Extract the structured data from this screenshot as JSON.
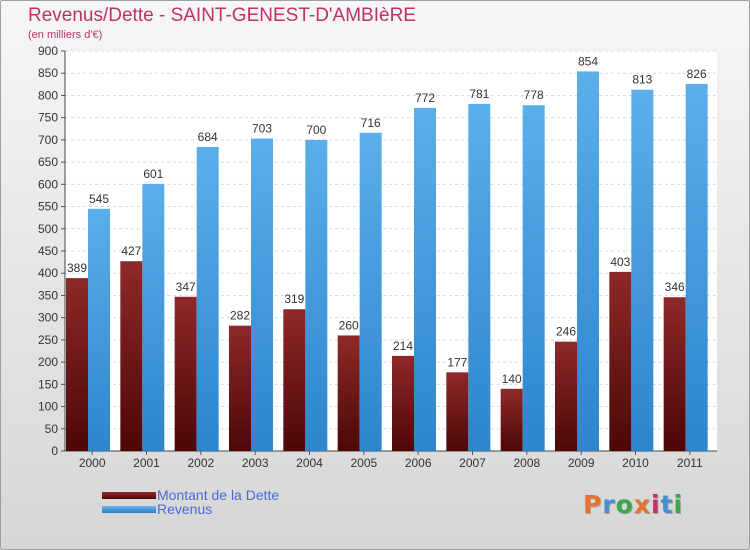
{
  "title": "Revenus/Dette - SAINT-GENEST-D'AMBIèRE",
  "subtitle": "(en milliers d'€)",
  "legend": [
    {
      "label": "Montant de la Dette",
      "color": "#7b1c1c"
    },
    {
      "label": "Revenus",
      "color": "#3f93db"
    }
  ],
  "logo": {
    "text": "Proxiti",
    "colors": [
      "#e8722c",
      "#4a8ed0",
      "#3aa849",
      "#e8722c",
      "#c0316a",
      "#4a8ed0",
      "#3aa849"
    ]
  },
  "colors": {
    "title": "#c0316a",
    "legend_text": "#4a6ad6",
    "dette": "#7b1c1c",
    "revenus": "#3f93db"
  },
  "chart_data": {
    "type": "bar",
    "categories": [
      "2000",
      "2001",
      "2002",
      "2003",
      "2004",
      "2005",
      "2006",
      "2007",
      "2008",
      "2009",
      "2010",
      "2011"
    ],
    "series": [
      {
        "name": "Montant de la Dette",
        "values": [
          389,
          427,
          347,
          282,
          319,
          260,
          214,
          177,
          140,
          246,
          403,
          346
        ]
      },
      {
        "name": "Revenus",
        "values": [
          545,
          601,
          684,
          703,
          700,
          716,
          772,
          781,
          778,
          854,
          813,
          826
        ]
      }
    ],
    "title": "Revenus/Dette - SAINT-GENEST-D'AMBIèRE",
    "subtitle": "(en milliers d'€)",
    "xlabel": "",
    "ylabel": "",
    "ylim": [
      0,
      900
    ],
    "yticks": [
      0,
      50,
      100,
      150,
      200,
      250,
      300,
      350,
      400,
      450,
      500,
      550,
      600,
      650,
      700,
      750,
      800,
      850,
      900
    ],
    "grid": true,
    "legend_position": "bottom-left"
  }
}
